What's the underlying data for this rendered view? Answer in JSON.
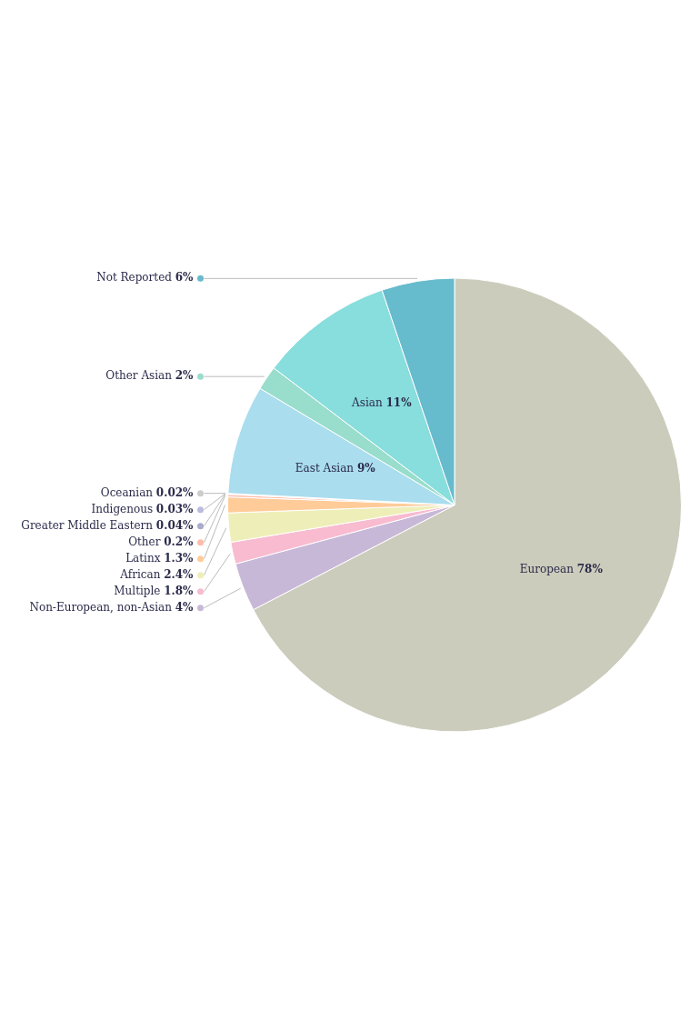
{
  "chart_data": {
    "type": "pie",
    "categories": [
      "European",
      "Non-European, non-Asian",
      "Multiple",
      "African",
      "Latinx",
      "Other",
      "Greater Middle Eastern",
      "Indigenous",
      "Oceanian",
      "East Asian",
      "Other Asian",
      "Asian",
      "Not Reported"
    ],
    "values": [
      78,
      4,
      1.8,
      2.4,
      1.3,
      0.2,
      0.04,
      0.03,
      0.02,
      9,
      2,
      11,
      6
    ],
    "value_labels": [
      "78%",
      "4%",
      "1.8%",
      "2.4%",
      "1.3%",
      "0.2%",
      "0.04%",
      "0.03%",
      "0.02%",
      "9%",
      "2%",
      "11%",
      "6%"
    ],
    "colors": [
      "#CCCCBC",
      "#C8B8D8",
      "#F8BBD0",
      "#EEEEB8",
      "#FFCC99",
      "#FFBBAA",
      "#AAAACC",
      "#BBBBDD",
      "#CCCCCC",
      "#AADDEE",
      "#99DDCC",
      "#88DDDD",
      "#66BBCC"
    ],
    "data_labels": true
  }
}
